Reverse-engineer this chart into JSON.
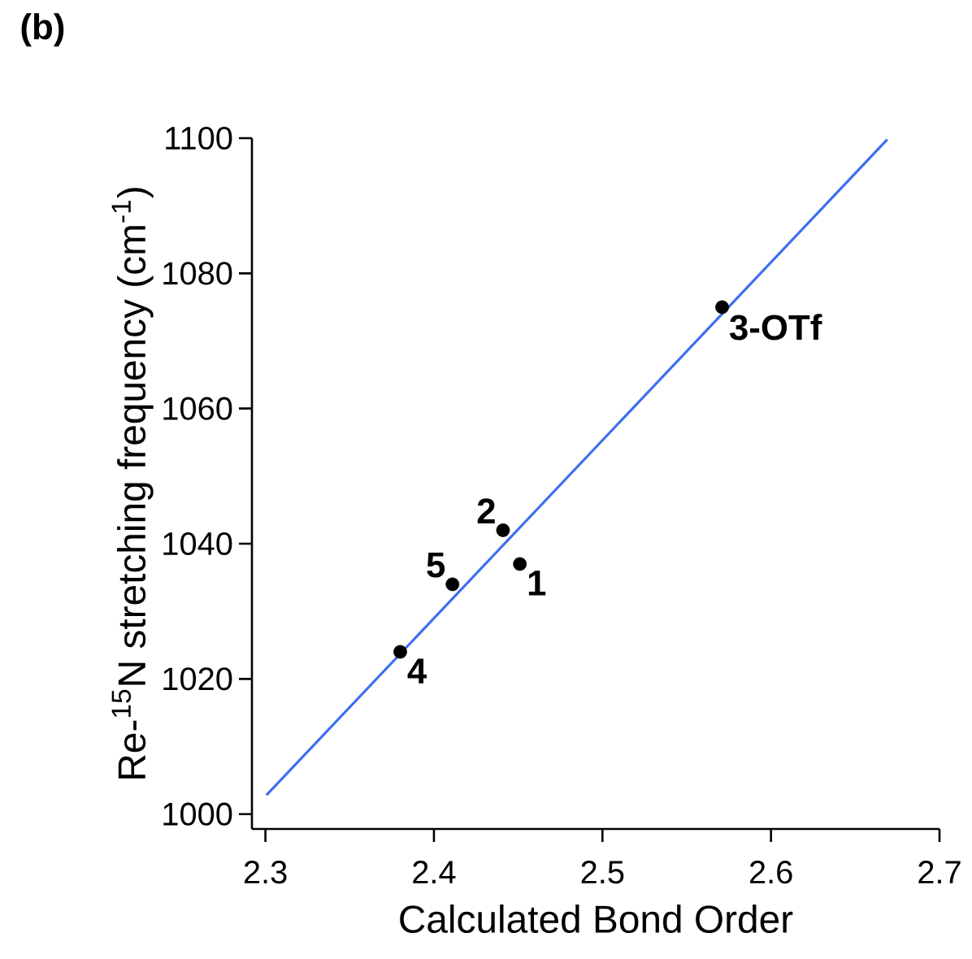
{
  "chart_data": {
    "type": "scatter",
    "title": "(b)",
    "xlabel": "Calculated Bond Order",
    "ylabel": "Re-$^{15}$N stretching frequency (cm$^{-1}$)",
    "xlim": [
      2.292,
      2.7
    ],
    "ylim": [
      997.8,
      1100
    ],
    "xticks": [
      2.3,
      2.4,
      2.5,
      2.6,
      2.7
    ],
    "yticks": [
      1000,
      1020,
      1040,
      1060,
      1080,
      1100
    ],
    "marker": "circle",
    "grid": false,
    "series": [
      {
        "type": "line",
        "color": "#3d6ff0",
        "marker": "none",
        "x": [
          2.3006,
          2.669
        ],
        "values": [
          1002.8,
          1099.8
        ]
      },
      {
        "color": "#000000",
        "x": [
          2.38,
          2.411,
          2.441,
          2.451,
          2.571
        ],
        "values": [
          1024,
          1034,
          1042,
          1037,
          1075
        ]
      }
    ],
    "annotations": [
      {
        "text": "4",
        "x": 2.38,
        "y": 1024
      },
      {
        "text": "5",
        "x": 2.411,
        "y": 1034
      },
      {
        "text": "2",
        "x": 2.441,
        "y": 1042
      },
      {
        "text": "1",
        "x": 2.451,
        "y": 1037
      },
      {
        "text": "3-OTf",
        "x": 2.571,
        "y": 1075
      }
    ]
  }
}
